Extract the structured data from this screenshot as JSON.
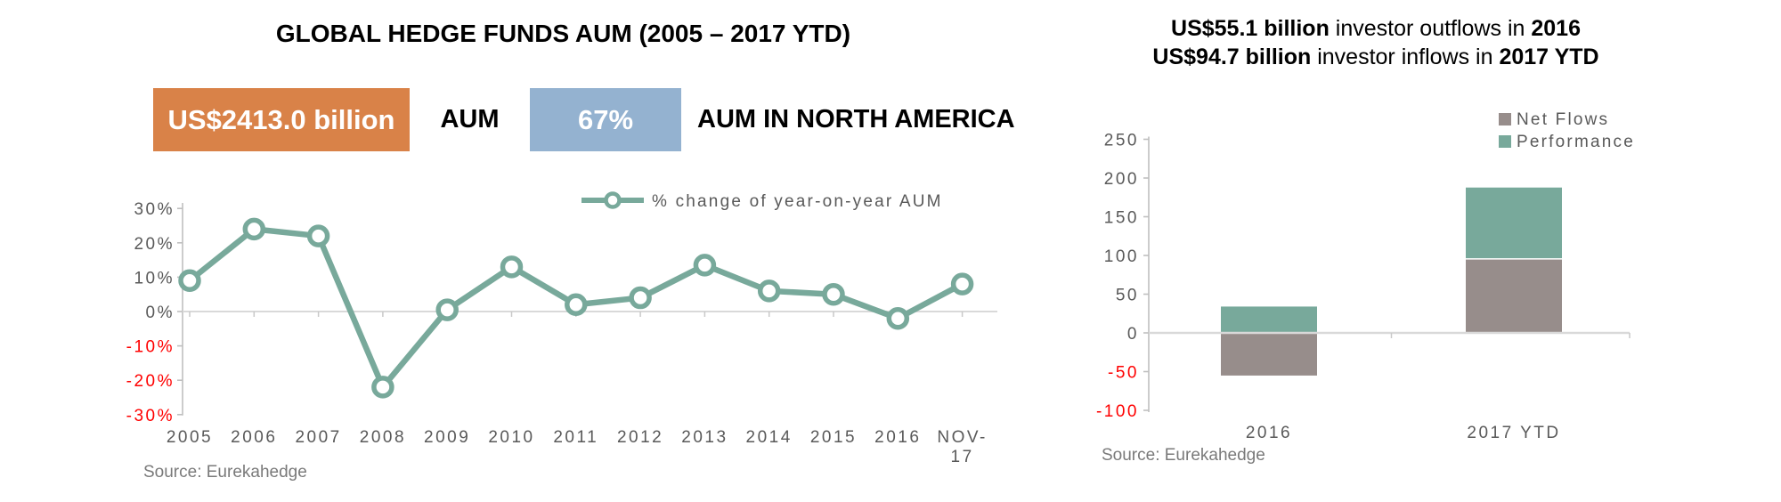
{
  "left_chart": {
    "title": "GLOBAL HEDGE FUNDS AUM (2005 – 2017 YTD)",
    "stats": [
      {
        "value": "US$2413.0 billion",
        "label": "AUM",
        "box_color": "#D98248"
      },
      {
        "value": "67%",
        "label": "AUM IN NORTH AMERICA",
        "box_color": "#94B2D0"
      }
    ],
    "source": "Source: Eurekahedge"
  },
  "right_chart": {
    "title_line1": {
      "bold_start": "US$55.1 billion",
      "middle": " investor outflows in ",
      "bold_end": "2016"
    },
    "title_line2": {
      "bold_start": "US$94.7 billion",
      "middle": " investor inflows in ",
      "bold_end": "2017 YTD"
    },
    "source": "Source: Eurekahedge"
  },
  "chart_data": [
    {
      "type": "line",
      "title": "GLOBAL HEDGE FUNDS AUM (2005 – 2017 YTD)",
      "legend": "% change of year-on-year AUM",
      "legend_position": "top-right",
      "categories": [
        "2005",
        "2006",
        "2007",
        "2008",
        "2009",
        "2010",
        "2011",
        "2012",
        "2013",
        "2014",
        "2015",
        "2016",
        "NOV-17"
      ],
      "values": [
        9,
        24,
        22,
        -22,
        0.5,
        13,
        2,
        4,
        13.5,
        6,
        5,
        -2,
        8
      ],
      "ylim": [
        -30,
        30
      ],
      "ytick_step": 10,
      "ytick_suffix": "%",
      "grid": "zero-line-only",
      "line_color": "#78A99B",
      "marker": "open-circle",
      "axis_text_color": "#595959",
      "negative_tick_color": "#FF0000"
    },
    {
      "type": "bar",
      "subtype": "stacked",
      "categories": [
        "2016",
        "2017 YTD"
      ],
      "series": [
        {
          "name": "Net Flows",
          "color": "#978D8B",
          "values": [
            -55.1,
            94.7
          ]
        },
        {
          "name": "Performance",
          "color": "#78A99B",
          "values": [
            34,
            93
          ]
        }
      ],
      "ylim": [
        -100,
        250
      ],
      "ytick_step": 50,
      "grid": "zero-line-only",
      "legend_position": "top-right",
      "axis_text_color": "#595959",
      "negative_tick_color": "#FF0000"
    }
  ]
}
